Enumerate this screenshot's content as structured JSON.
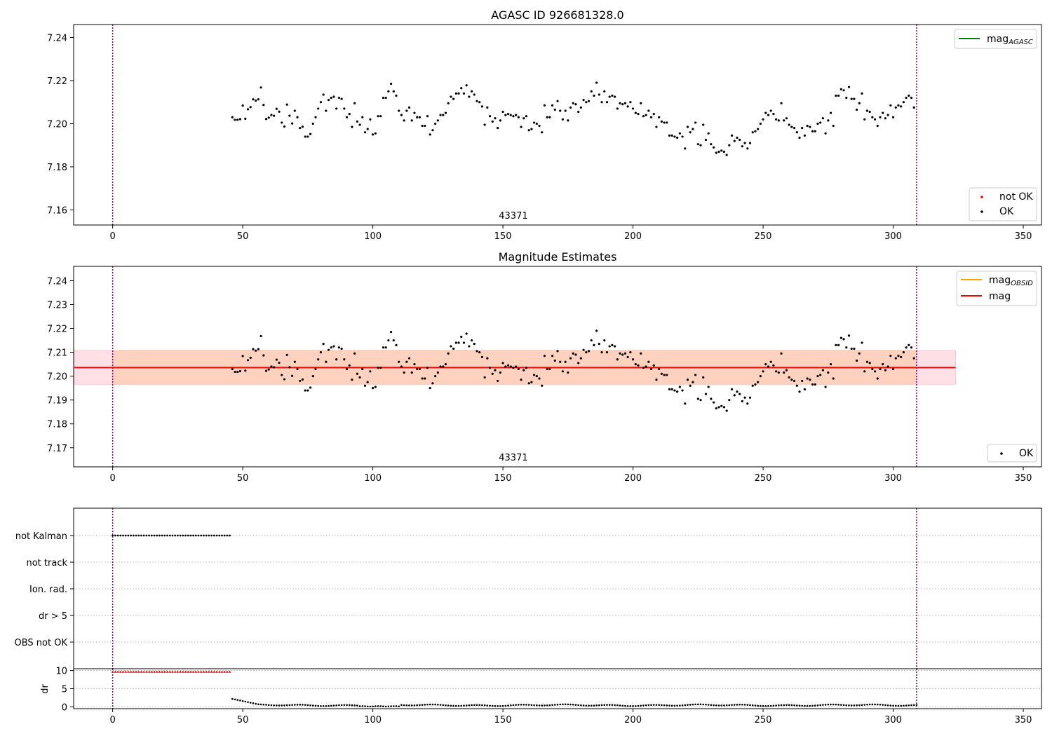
{
  "colors": {
    "ok": "#000000",
    "not_ok": "#ff0000",
    "mag_agasc": "#008000",
    "mag_obsid": "#ffa500",
    "mag": "#ff0000",
    "band_outer": "#ffe0e6",
    "band_inner": "#ffd2bf",
    "vline": "#800080"
  },
  "chart_data": [
    {
      "type": "scatter",
      "title": "AGASC ID 926681328.0",
      "xlim": [
        -15,
        357
      ],
      "ylim": [
        7.153,
        7.246
      ],
      "xticks": [
        0,
        50,
        100,
        150,
        200,
        250,
        300,
        350
      ],
      "yticks": [
        7.16,
        7.18,
        7.2,
        7.22,
        7.24
      ],
      "ytick_labels": [
        "7.16",
        "7.18",
        "7.20",
        "7.22",
        "7.24"
      ],
      "vlines": [
        0,
        309
      ],
      "annotation": {
        "text": "43371",
        "x": 154
      },
      "legend_lines": [
        {
          "label": "mag",
          "sub": "AGASC",
          "color": "#008000"
        }
      ],
      "legend_points": [
        {
          "label": "not OK",
          "color": "#ff0000"
        },
        {
          "label": "OK",
          "color": "#000000"
        }
      ],
      "series": [
        {
          "name": "OK",
          "x_start": 46,
          "x_step": 1,
          "y": [
            7.203,
            7.2018,
            7.2018,
            7.2021,
            7.2084,
            7.2023,
            7.2067,
            7.2077,
            7.2113,
            7.2107,
            7.2113,
            7.2168,
            7.2087,
            7.2022,
            7.2028,
            7.204,
            7.2037,
            7.2069,
            7.2056,
            7.2005,
            7.1987,
            7.2089,
            7.2037,
            7.2001,
            7.206,
            7.203,
            7.198,
            7.1986,
            7.194,
            7.194,
            7.1952,
            7.2,
            7.203,
            7.207,
            7.21,
            7.2135,
            7.206,
            7.211,
            7.212,
            7.2125,
            7.207,
            7.212,
            7.2115,
            7.207,
            7.203,
            7.2045,
            7.1985,
            7.2095,
            7.201,
            7.1995,
            7.203,
            7.196,
            7.1975,
            7.202,
            7.195,
            7.1955,
            7.2035,
            7.2035,
            7.212,
            7.212,
            7.215,
            7.2185,
            7.215,
            7.213,
            7.206,
            7.204,
            7.2015,
            7.206,
            7.2075,
            7.2015,
            7.205,
            7.203,
            7.203,
            7.199,
            7.199,
            7.2035,
            7.195,
            7.197,
            7.2,
            7.2015,
            7.204,
            7.204,
            7.205,
            7.2095,
            7.2125,
            7.2115,
            7.214,
            7.214,
            7.2165,
            7.214,
            7.2178,
            7.2125,
            7.215,
            7.2135,
            7.2105,
            7.21,
            7.208,
            7.1995,
            7.2075,
            7.2035,
            7.201,
            7.2025,
            7.198,
            7.2015,
            7.2055,
            7.204,
            7.2045,
            7.204,
            7.2035,
            7.204,
            7.203,
            7.1985,
            7.2025,
            7.2035,
            7.197,
            7.1975,
            7.2005,
            7.2,
            7.199,
            7.196,
            7.2085,
            7.203,
            7.203,
            7.2085,
            7.2065,
            7.2105,
            7.206,
            7.202,
            7.206,
            7.2015,
            7.2075,
            7.2095,
            7.209,
            7.2055,
            7.2075,
            7.211,
            7.21,
            7.2105,
            7.215,
            7.213,
            7.219,
            7.2135,
            7.21,
            7.215,
            7.21,
            7.2125,
            7.213,
            7.2125,
            7.207,
            7.2095,
            7.209,
            7.2095,
            7.208,
            7.21,
            7.207,
            7.205,
            7.2045,
            7.2095,
            7.2035,
            7.204,
            7.206,
            7.203,
            7.2045,
            7.1985,
            7.203,
            7.201,
            7.2005,
            7.2005,
            7.1945,
            7.1945,
            7.194,
            7.1935,
            7.1955,
            7.194,
            7.1885,
            7.1985,
            7.196,
            7.1975,
            7.2005,
            7.1905,
            7.19,
            7.1995,
            7.1925,
            7.1955,
            7.1905,
            7.189,
            7.1865,
            7.187,
            7.1875,
            7.187,
            7.1855,
            7.19,
            7.1945,
            7.192,
            7.1935,
            7.1925,
            7.1895,
            7.191,
            7.1885,
            7.191,
            7.196,
            7.1965,
            7.1975,
            7.2,
            7.202,
            7.205,
            7.204,
            7.206,
            7.2045,
            7.202,
            7.2015,
            7.2095,
            7.2015,
            7.2025,
            7.1995,
            7.1985,
            7.198,
            7.196,
            7.1935,
            7.198,
            7.1945,
            7.199,
            7.1985,
            7.1965,
            7.1965,
            7.2,
            7.2005,
            7.2025,
            7.1955,
            7.2015,
            7.205,
            7.199,
            7.213,
            7.213,
            7.216,
            7.2155,
            7.212,
            7.217,
            7.2115,
            7.2115,
            7.2065,
            7.2095,
            7.214,
            7.202,
            7.206,
            7.2055,
            7.203,
            7.202,
            7.199,
            7.203,
            7.205,
            7.2025,
            7.204,
            7.2085,
            7.203,
            7.2075,
            7.2085,
            7.208,
            7.21,
            7.212,
            7.213,
            7.212,
            7.2075
          ]
        }
      ]
    },
    {
      "type": "scatter",
      "title": "Magnitude Estimates",
      "xlim": [
        -15,
        357
      ],
      "ylim": [
        7.162,
        7.246
      ],
      "xticks": [
        0,
        50,
        100,
        150,
        200,
        250,
        300,
        350
      ],
      "yticks": [
        7.17,
        7.18,
        7.19,
        7.2,
        7.21,
        7.22,
        7.23,
        7.24
      ],
      "ytick_labels": [
        "7.17",
        "7.18",
        "7.19",
        "7.20",
        "7.21",
        "7.22",
        "7.23",
        "7.24"
      ],
      "vlines": [
        0,
        309
      ],
      "annotation": {
        "text": "43371",
        "x": 154
      },
      "mag_line": {
        "y": 7.2036,
        "x_range": [
          -15,
          324
        ]
      },
      "band_outer": {
        "y_range": [
          7.1966,
          7.2108
        ],
        "x_range": [
          -15,
          324
        ]
      },
      "band_inner": {
        "y_range": [
          7.1966,
          7.2108
        ],
        "x_range": [
          0,
          309
        ]
      },
      "legend_lines": [
        {
          "label": "mag",
          "sub": "OBSID",
          "color": "#ffa500"
        },
        {
          "label": "mag",
          "sub": "",
          "color": "#ff0000"
        }
      ],
      "legend_points": [
        {
          "label": "OK",
          "color": "#000000"
        }
      ],
      "uses_series_from": 0
    },
    {
      "type": "scatter",
      "yticks_labels": [
        "not Kalman",
        "not track",
        "Ion. rad.",
        "dr > 5",
        "OBS not OK"
      ],
      "xlim": [
        -15,
        357
      ],
      "flag_not_kalman": {
        "x_range": [
          0,
          45
        ],
        "step": 1
      },
      "vlines": [
        0,
        309
      ]
    },
    {
      "type": "scatter",
      "ylabel": "dr",
      "xlim": [
        -15,
        357
      ],
      "ylim": [
        -0.5,
        10.5
      ],
      "xticks": [
        0,
        50,
        100,
        150,
        200,
        250,
        300,
        350
      ],
      "yticks": [
        0,
        5,
        10
      ],
      "ytick_labels": [
        "0",
        "5",
        "10"
      ],
      "vlines": [
        0,
        309
      ],
      "red_markers": {
        "x_range": [
          0,
          45
        ],
        "y": 9.7
      },
      "dr_points": {
        "x_start": 46,
        "x_end": 309,
        "y_start": 2.2
      }
    }
  ]
}
